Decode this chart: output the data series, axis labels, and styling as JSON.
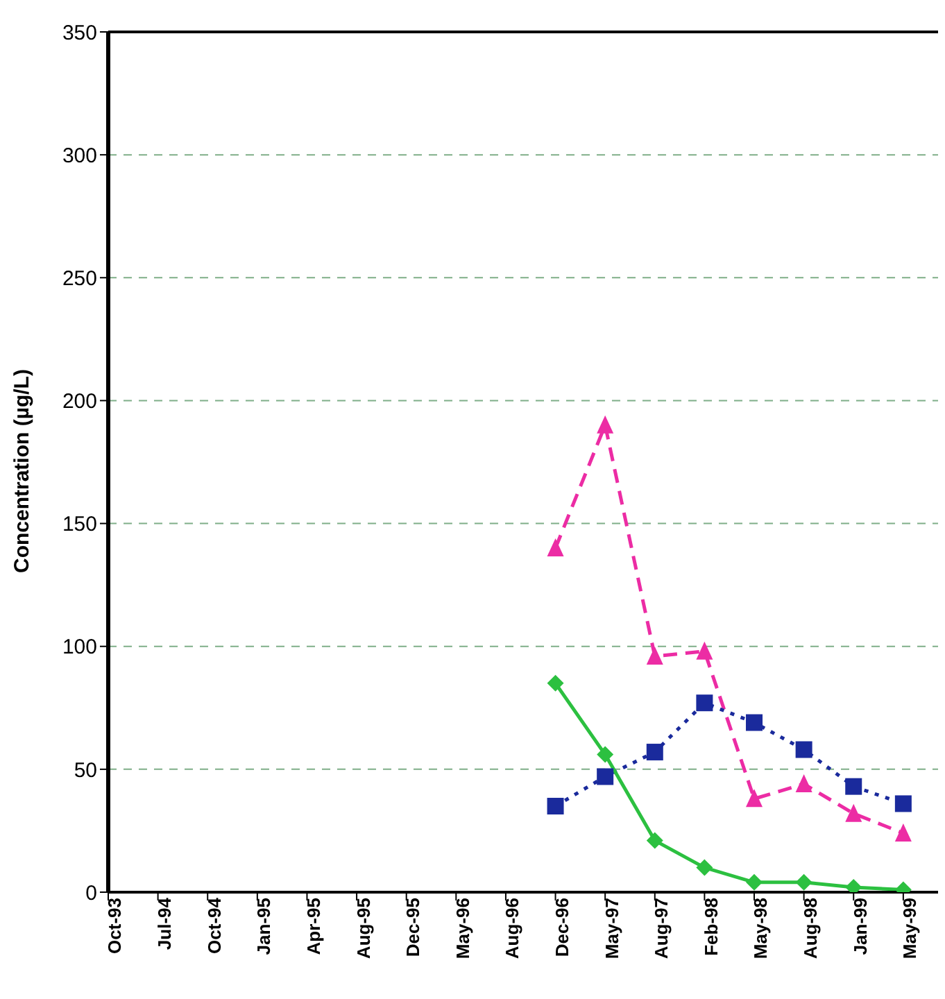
{
  "chart_data": {
    "type": "line",
    "ylabel": "Concentration (µg/L)",
    "categories": [
      "Oct-93",
      "Jul-94",
      "Oct-94",
      "Jan-95",
      "Apr-95",
      "Aug-95",
      "Dec-95",
      "May-96",
      "Aug-96",
      "Dec-96",
      "May-97",
      "Aug-97",
      "Feb-98",
      "May-98",
      "Aug-98",
      "Jan-99",
      "May-99"
    ],
    "series": [
      {
        "color": "#ec2ca4",
        "marker": "triangle",
        "line_style": "dashed",
        "values": [
          null,
          null,
          null,
          null,
          null,
          null,
          null,
          null,
          null,
          140,
          190,
          96,
          98,
          38,
          44,
          32,
          24
        ]
      },
      {
        "color": "#1a2a9c",
        "marker": "square",
        "line_style": "dotted",
        "values": [
          null,
          null,
          null,
          null,
          null,
          null,
          null,
          null,
          null,
          35,
          47,
          57,
          77,
          69,
          58,
          43,
          36
        ]
      },
      {
        "color": "#2cc040",
        "marker": "diamond",
        "line_style": "solid",
        "values": [
          null,
          null,
          null,
          null,
          null,
          null,
          null,
          null,
          null,
          85,
          56,
          21,
          10,
          4,
          4,
          2,
          1
        ]
      }
    ],
    "ylim": [
      0,
      350
    ],
    "yticks": [
      0,
      50,
      100,
      150,
      200,
      250,
      300,
      350
    ],
    "grid": "y",
    "legend": false
  }
}
